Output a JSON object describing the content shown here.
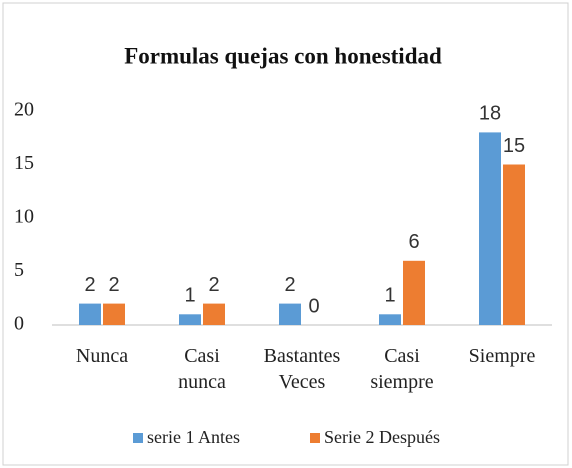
{
  "chart_data": {
    "type": "bar",
    "title": "Formulas quejas con honestidad",
    "categories": [
      "Nunca",
      "Casi nunca",
      "Bastantes Veces",
      "Casi siempre",
      "Siempre"
    ],
    "series": [
      {
        "name": "serie 1 Antes",
        "color": "#5b9bd5",
        "values": [
          2,
          1,
          2,
          1,
          18
        ]
      },
      {
        "name": "Serie 2 Después",
        "color": "#ed7d31",
        "values": [
          2,
          2,
          0,
          6,
          15
        ]
      }
    ],
    "ylim": [
      0,
      20
    ],
    "yticks": [
      0,
      5,
      10,
      15,
      20
    ],
    "grid": false,
    "legend": "bottom",
    "data_labels": true
  }
}
